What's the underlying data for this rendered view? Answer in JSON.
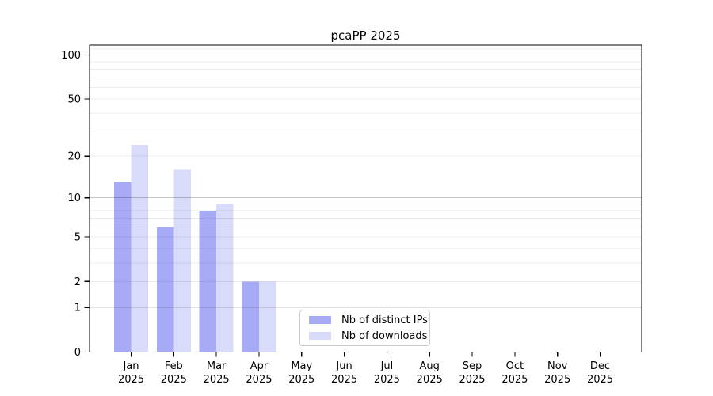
{
  "chart_data": {
    "type": "bar",
    "title": "pcaPP 2025",
    "categories": [
      "Jan",
      "Feb",
      "Mar",
      "Apr",
      "May",
      "Jun",
      "Jul",
      "Aug",
      "Sep",
      "Oct",
      "Nov",
      "Dec"
    ],
    "year_label": "2025",
    "series": [
      {
        "name": "Nb of distinct IPs",
        "color": "#a7aaf5",
        "values": [
          13,
          6,
          8,
          2,
          0,
          0,
          0,
          0,
          0,
          0,
          0,
          0
        ]
      },
      {
        "name": "Nb of downloads",
        "color": "#d9dbfa",
        "values": [
          24,
          16,
          9,
          2,
          0,
          0,
          0,
          0,
          0,
          0,
          0,
          0
        ]
      }
    ],
    "y_axis": {
      "scale": "log1p",
      "ticks": [
        0,
        1,
        2,
        5,
        10,
        20,
        50,
        100
      ],
      "max": 117
    },
    "grid": {
      "major_lines": [
        1,
        10,
        100
      ],
      "minor_lines": [
        2,
        3,
        4,
        5,
        6,
        7,
        8,
        9,
        20,
        30,
        40,
        50,
        60,
        70,
        80,
        90,
        110
      ],
      "major_color": "rgba(0,0,0,0.22)",
      "minor_color": "rgba(0,0,0,0.075)"
    },
    "legend_position": "lower-center",
    "xlabel": "",
    "ylabel": ""
  }
}
